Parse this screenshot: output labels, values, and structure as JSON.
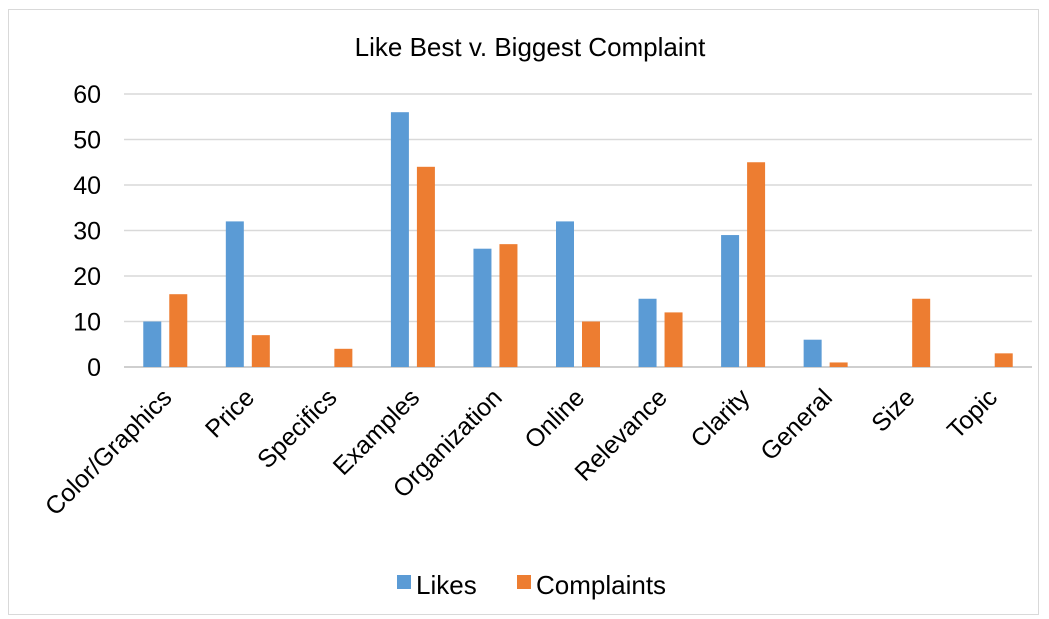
{
  "chart_data": {
    "type": "bar",
    "title": "Like Best v. Biggest Complaint",
    "categories": [
      "Color/Graphics",
      "Price",
      "Specifics",
      "Examples",
      "Organization",
      "Online",
      "Relevance",
      "Clarity",
      "General",
      "Size",
      "Topic"
    ],
    "series": [
      {
        "name": "Likes",
        "color": "#5b9bd5",
        "values": [
          10,
          32,
          0,
          56,
          26,
          32,
          15,
          29,
          6,
          0,
          0
        ]
      },
      {
        "name": "Complaints",
        "color": "#ed7d31",
        "values": [
          16,
          7,
          4,
          44,
          27,
          10,
          12,
          45,
          1,
          15,
          3
        ]
      }
    ],
    "ylim": [
      0,
      60
    ],
    "yticks": [
      0,
      10,
      20,
      30,
      40,
      50,
      60
    ],
    "grid": true,
    "legend": "bottom",
    "xlabel": "",
    "ylabel": ""
  }
}
